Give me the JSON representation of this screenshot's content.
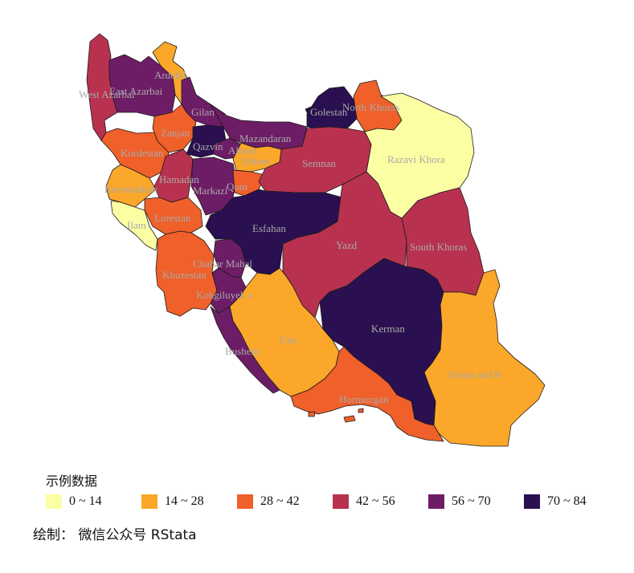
{
  "legend": {
    "title": "示例数据",
    "items": [
      {
        "label": "0 ~ 14",
        "color": "#fcfea4"
      },
      {
        "label": "14 ~ 28",
        "color": "#fba72a"
      },
      {
        "label": "28 ~ 42",
        "color": "#f0602a"
      },
      {
        "label": "42 ~ 56",
        "color": "#b8324f"
      },
      {
        "label": "56 ~ 70",
        "color": "#6d1d66"
      },
      {
        "label": "70 ~ 84",
        "color": "#2a1050"
      }
    ]
  },
  "provinces": [
    {
      "name": "West Azarbai",
      "class": 3
    },
    {
      "name": "East Azarbai",
      "class": 4
    },
    {
      "name": "Ardebil",
      "class": 1
    },
    {
      "name": "Gilan",
      "class": 4
    },
    {
      "name": "Zanjan",
      "class": 2
    },
    {
      "name": "Kordestan",
      "class": 2
    },
    {
      "name": "Kermanshah",
      "class": 1
    },
    {
      "name": "Hamadan",
      "class": 3
    },
    {
      "name": "Ilam",
      "class": 0
    },
    {
      "name": "Lorestan",
      "class": 2
    },
    {
      "name": "Qazvin",
      "class": 5
    },
    {
      "name": "Alborz",
      "class": 4
    },
    {
      "name": "Tehran",
      "class": 1
    },
    {
      "name": "Markazi",
      "class": 4
    },
    {
      "name": "Qom",
      "class": 2
    },
    {
      "name": "Mazandaran",
      "class": 4
    },
    {
      "name": "Golestan",
      "class": 5
    },
    {
      "name": "North Khoras",
      "class": 2
    },
    {
      "name": "Razavi Khora",
      "class": 0
    },
    {
      "name": "Semnan",
      "class": 3
    },
    {
      "name": "Esfahan",
      "class": 5
    },
    {
      "name": "Yazd",
      "class": 3
    },
    {
      "name": "South Khoras",
      "class": 3
    },
    {
      "name": "Khuzestan",
      "class": 2
    },
    {
      "name": "Chahar Mahal",
      "class": 4
    },
    {
      "name": "Kohgiluyeh a",
      "class": 4
    },
    {
      "name": "Bushehr",
      "class": 4
    },
    {
      "name": "Fars",
      "class": 1
    },
    {
      "name": "Kerman",
      "class": 5
    },
    {
      "name": "Sistan and B",
      "class": 1
    },
    {
      "name": "Hormozgan",
      "class": 2
    }
  ],
  "footer": "绘制： 微信公众号 RStata"
}
